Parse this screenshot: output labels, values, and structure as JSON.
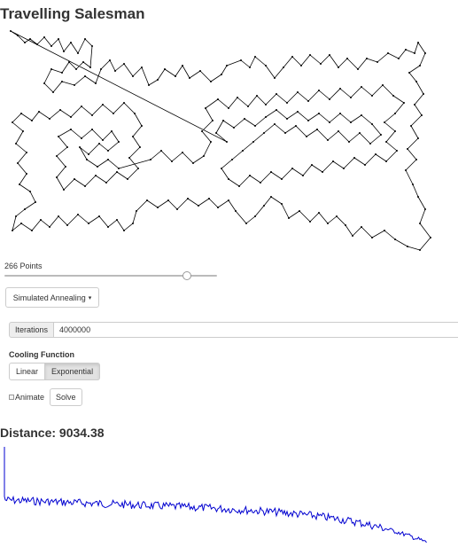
{
  "page": {
    "title": "Travelling Salesman"
  },
  "points": {
    "label": "266 Points",
    "slider_fraction": 0.86
  },
  "algorithm": {
    "selected": "Simulated Annealing",
    "caret_icon": "caret-down-icon"
  },
  "iterations": {
    "addon_label": "Iterations",
    "value": "4000000"
  },
  "cooling": {
    "label": "Cooling Function",
    "options": [
      "Linear",
      "Exponential"
    ],
    "active": "Exponential"
  },
  "animate": {
    "label": "Animate",
    "checked": false
  },
  "solve": {
    "label": "Solve"
  },
  "distance": {
    "text": "Distance: 9034.38"
  },
  "colors": {
    "tour": "#000000",
    "energy_line": "#0000d0"
  }
}
